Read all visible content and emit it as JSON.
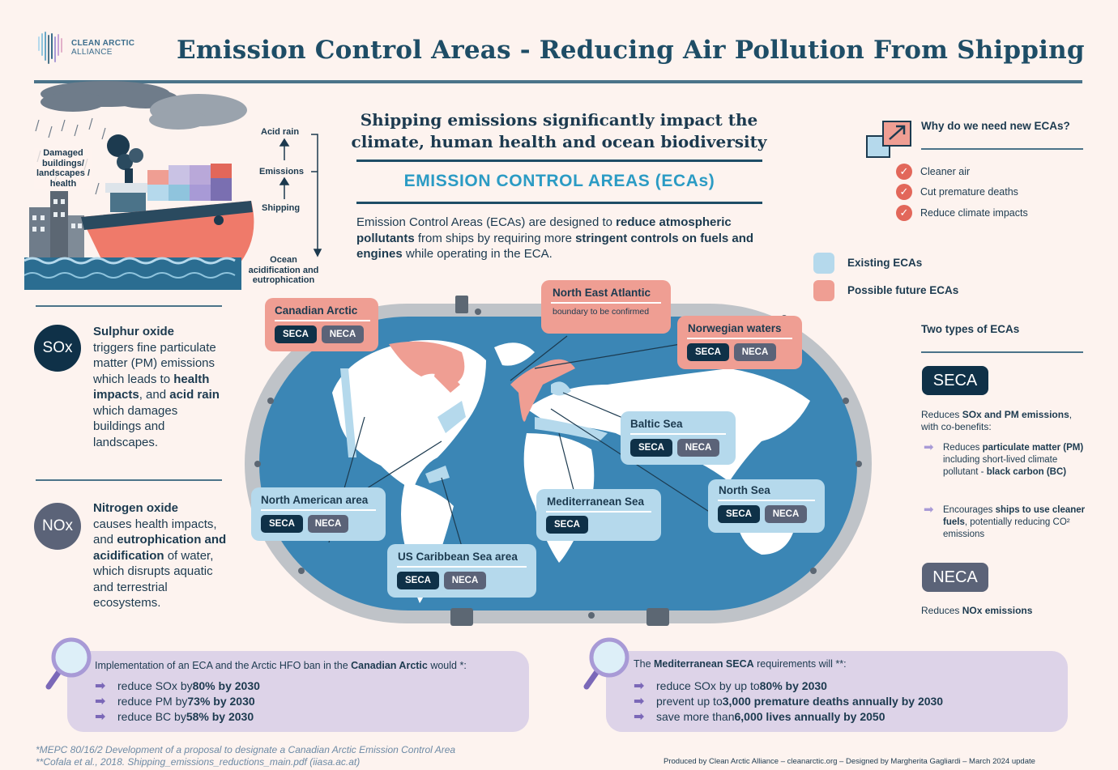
{
  "header": {
    "logo_line1": "CLEAN ARCTIC",
    "logo_line2": "ALLIANCE",
    "title": "Emission Control Areas - Reducing Air Pollution From Shipping"
  },
  "illustration": {
    "acid_rain": "Acid rain",
    "emissions": "Emissions",
    "shipping": "Shipping",
    "ocean": "Ocean acidification and eutrophication",
    "damaged": "Damaged buildings/ landscapes / health"
  },
  "intro": {
    "subhead": "Shipping emissions significantly impact the climate, human health and ocean biodiversity",
    "heading": "EMISSION CONTROL AREAS (ECAs)",
    "p1": "Emission Control Areas (ECAs) are designed to ",
    "b1": "reduce atmospheric pollutants",
    "p2": " from ships by requiring more ",
    "b2": "stringent controls on fuels and engines",
    "p3": " while operating in the ECA."
  },
  "why": {
    "title": "Why do we need new ECAs?",
    "items": [
      "Cleaner air",
      "Cut premature deaths",
      "Reduce climate impacts"
    ]
  },
  "legend": {
    "existing": "Existing ECAs",
    "possible": "Possible future ECAs",
    "existing_color": "#b5d9ec",
    "possible_color": "#ef9e93"
  },
  "types": {
    "title": "Two types of ECAs",
    "seca": "SECA",
    "seca_desc_a": "Reduces ",
    "seca_desc_b": "SOx and PM emissions",
    "seca_desc_c": ", with co-benefits:",
    "bullet1_a": "Reduces ",
    "bullet1_b": "particulate matter (PM)",
    "bullet1_c": " including short-lived climate pollutant - ",
    "bullet1_d": "black carbon (BC)",
    "bullet2_a": "Encourages ",
    "bullet2_b": "ships to use cleaner fuels",
    "bullet2_c": ", potentially reducing CO² emissions",
    "neca": "NECA",
    "neca_desc_a": "Reduces ",
    "neca_desc_b": "NOx emissions"
  },
  "sox": {
    "label": "SOx",
    "title": "Sulphur oxide",
    "t1": "triggers fine particulate matter (PM) emissions which leads to ",
    "b1": "health impacts",
    "t2": ", and ",
    "b2": "acid rain",
    "t3": " which damages buildings and landscapes."
  },
  "nox": {
    "label": "NOx",
    "title": "Nitrogen oxide",
    "t1": "causes health impacts, and ",
    "b1": "eutrophication and acidification",
    "t2": " of water, which disrupts aquatic and terrestrial ecosystems."
  },
  "areas": {
    "canadian_arctic": "Canadian Arctic",
    "north_east_atlantic": "North East Atlantic",
    "nea_sub": "boundary to be confirmed",
    "norwegian": "Norwegian waters",
    "baltic": "Baltic Sea",
    "north_american": "North American area",
    "mediterranean": "Mediterranean Sea",
    "north_sea": "North Sea",
    "us_caribbean": "US Caribbean Sea area",
    "seca": "SECA",
    "neca": "NECA"
  },
  "bottom_left": {
    "intro_a": "Implementation of an ECA and the Arctic HFO ban in the ",
    "intro_b": "Canadian Arctic",
    "intro_c": " would *:",
    "l1_a": "reduce SOx by ",
    "l1_b": "80% by 2030",
    "l2_a": "reduce PM by ",
    "l2_b": "73% by 2030",
    "l3_a": "reduce BC by ",
    "l3_b": "58% by 2030"
  },
  "bottom_right": {
    "intro_a": "The ",
    "intro_b": "Mediterranean SECA",
    "intro_c": " requirements will **:",
    "l1_a": "reduce SOx by up to ",
    "l1_b": "80% by 2030",
    "l2_a": "prevent up to ",
    "l2_b": "3,000 premature deaths annually by 2030",
    "l3_a": "save more than ",
    "l3_b": "6,000 lives annually by 2050"
  },
  "footer": {
    "note1": "*MEPC 80/16/2 Development of a proposal to designate a Canadian Arctic Emission Control Area",
    "note2": "**Cofala et al., 2018. Shipping_emissions_reductions_main.pdf (iiasa.ac.at)",
    "credit": "Produced by Clean Arctic Alliance – cleanarctic.org – Designed by Margherita Gagliardi – March 2024 update"
  }
}
